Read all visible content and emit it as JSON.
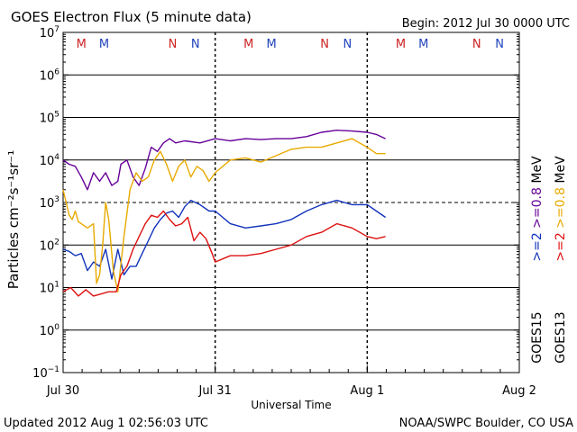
{
  "chart_data": {
    "type": "line",
    "title": "GOES Electron Flux (5 minute data)",
    "begin_label": "Begin: 2012 Jul 30 0000 UTC",
    "xlabel": "Universal Time",
    "ylabel": "Particles cm⁻²s⁻¹sr⁻¹",
    "x_unit": "days since 2012-07-30 00:00 UTC",
    "xlim": [
      0,
      3
    ],
    "ylim_log10": [
      -1,
      7
    ],
    "y_scale": "log",
    "grid": "horizontal decades, dashed at 10^3",
    "x_ticks": [
      {
        "value": 0,
        "label": "Jul 30"
      },
      {
        "value": 1,
        "label": "Jul 31"
      },
      {
        "value": 2,
        "label": "Aug 1"
      },
      {
        "value": 3,
        "label": "Aug 2"
      }
    ],
    "y_ticks": [
      {
        "exp": 7,
        "label": "10",
        "sup": "7"
      },
      {
        "exp": 6,
        "label": "10",
        "sup": "6"
      },
      {
        "exp": 5,
        "label": "10",
        "sup": "5"
      },
      {
        "exp": 4,
        "label": "10",
        "sup": "4"
      },
      {
        "exp": 3,
        "label": "10",
        "sup": "3"
      },
      {
        "exp": 2,
        "label": "10",
        "sup": "2"
      },
      {
        "exp": 1,
        "label": "10",
        "sup": "1"
      },
      {
        "exp": 0,
        "label": "10",
        "sup": "0"
      },
      {
        "exp": -1,
        "label": "10",
        "sup": "−1"
      }
    ],
    "satellite_markers": [
      {
        "x": 0.12,
        "label": "M",
        "color": "#cc2222"
      },
      {
        "x": 0.27,
        "label": "M",
        "color": "#2244bb"
      },
      {
        "x": 0.72,
        "label": "N",
        "color": "#cc2222"
      },
      {
        "x": 0.87,
        "label": "N",
        "color": "#2244bb"
      },
      {
        "x": 1.22,
        "label": "M",
        "color": "#cc2222"
      },
      {
        "x": 1.37,
        "label": "M",
        "color": "#2244bb"
      },
      {
        "x": 1.72,
        "label": "N",
        "color": "#cc2222"
      },
      {
        "x": 1.87,
        "label": "N",
        "color": "#2244bb"
      },
      {
        "x": 2.22,
        "label": "M",
        "color": "#cc2222"
      },
      {
        "x": 2.37,
        "label": "M",
        "color": "#2244bb"
      },
      {
        "x": 2.72,
        "label": "N",
        "color": "#cc2222"
      },
      {
        "x": 2.87,
        "label": "N",
        "color": "#2244bb"
      }
    ],
    "series": [
      {
        "name": "GOES15 >=0.8 MeV",
        "color": "#660099",
        "x": [
          0,
          0.04,
          0.08,
          0.12,
          0.16,
          0.2,
          0.24,
          0.28,
          0.32,
          0.36,
          0.38,
          0.42,
          0.46,
          0.5,
          0.54,
          0.58,
          0.62,
          0.66,
          0.7,
          0.74,
          0.8,
          0.9,
          1.0,
          1.1,
          1.2,
          1.3,
          1.4,
          1.5,
          1.6,
          1.7,
          1.8,
          1.9,
          2.0,
          2.06,
          2.12
        ],
        "log_values": [
          4.0,
          3.9,
          3.85,
          3.6,
          3.3,
          3.7,
          3.5,
          3.7,
          3.4,
          3.5,
          3.9,
          4.0,
          3.6,
          3.4,
          3.8,
          4.3,
          4.2,
          4.4,
          4.5,
          4.4,
          4.45,
          4.4,
          4.5,
          4.45,
          4.5,
          4.48,
          4.5,
          4.5,
          4.55,
          4.65,
          4.7,
          4.68,
          4.65,
          4.6,
          4.5
        ]
      },
      {
        "name": "GOES15 >=2 MeV",
        "color": "#1133bb",
        "x": [
          0,
          0.04,
          0.08,
          0.12,
          0.16,
          0.2,
          0.24,
          0.28,
          0.32,
          0.36,
          0.4,
          0.44,
          0.48,
          0.52,
          0.56,
          0.6,
          0.64,
          0.68,
          0.72,
          0.76,
          0.8,
          0.84,
          0.9,
          0.96,
          1.0,
          1.1,
          1.2,
          1.3,
          1.4,
          1.5,
          1.6,
          1.7,
          1.8,
          1.9,
          2.0,
          2.06,
          2.12
        ],
        "log_values": [
          1.9,
          1.85,
          1.75,
          1.8,
          1.4,
          1.6,
          1.5,
          1.9,
          1.2,
          1.9,
          1.3,
          1.5,
          1.5,
          1.8,
          2.1,
          2.4,
          2.6,
          2.75,
          2.8,
          2.65,
          2.9,
          3.05,
          2.95,
          2.8,
          2.8,
          2.5,
          2.4,
          2.45,
          2.5,
          2.6,
          2.8,
          2.95,
          3.05,
          2.95,
          2.95,
          2.8,
          2.65
        ]
      },
      {
        "name": "GOES13 >=0.8 MeV",
        "color": "#e8aa00",
        "x": [
          0,
          0.02,
          0.04,
          0.06,
          0.08,
          0.1,
          0.12,
          0.16,
          0.2,
          0.22,
          0.24,
          0.26,
          0.28,
          0.3,
          0.33,
          0.36,
          0.4,
          0.44,
          0.48,
          0.52,
          0.56,
          0.6,
          0.64,
          0.68,
          0.72,
          0.76,
          0.8,
          0.84,
          0.88,
          0.92,
          0.96,
          1.0,
          1.1,
          1.2,
          1.3,
          1.4,
          1.5,
          1.6,
          1.7,
          1.8,
          1.9,
          2.0,
          2.06,
          2.12
        ],
        "log_values": [
          3.3,
          3.0,
          2.7,
          2.6,
          2.8,
          2.55,
          2.5,
          2.4,
          2.5,
          1.1,
          1.3,
          2.0,
          3.0,
          2.6,
          1.4,
          0.9,
          2.2,
          3.3,
          3.7,
          3.5,
          3.6,
          4.0,
          4.2,
          3.9,
          3.5,
          3.85,
          4.0,
          3.6,
          3.85,
          3.75,
          3.5,
          3.7,
          4.0,
          4.05,
          3.95,
          4.1,
          4.25,
          4.3,
          4.3,
          4.4,
          4.5,
          4.3,
          4.15,
          4.15
        ]
      },
      {
        "name": "GOES13 >=2 MeV",
        "color": "#dd1111",
        "x": [
          0,
          0.05,
          0.1,
          0.15,
          0.2,
          0.25,
          0.3,
          0.35,
          0.38,
          0.42,
          0.46,
          0.5,
          0.54,
          0.58,
          0.62,
          0.66,
          0.7,
          0.74,
          0.78,
          0.82,
          0.86,
          0.9,
          0.94,
          0.98,
          1.0,
          1.1,
          1.2,
          1.3,
          1.4,
          1.5,
          1.6,
          1.7,
          1.8,
          1.9,
          2.0,
          2.06,
          2.12
        ],
        "log_values": [
          0.9,
          1.0,
          0.8,
          0.95,
          0.8,
          0.85,
          0.9,
          0.9,
          1.3,
          1.5,
          1.9,
          2.2,
          2.5,
          2.7,
          2.65,
          2.8,
          2.6,
          2.45,
          2.5,
          2.65,
          2.1,
          2.3,
          2.15,
          1.8,
          1.6,
          1.75,
          1.75,
          1.8,
          1.9,
          2.0,
          2.2,
          2.3,
          2.5,
          2.4,
          2.2,
          2.15,
          2.2
        ]
      }
    ],
    "right_labels": {
      "goes15_low": ">=0.8",
      "goes15_high": ">=2",
      "goes13_low": ">=0.8",
      "goes13_high": ">=2",
      "unit": "MeV",
      "goes15": "GOES15",
      "goes13": "GOES13",
      "color_goes15_low": "#660099",
      "color_goes15_high": "#1133bb",
      "color_goes13_low": "#e8aa00",
      "color_goes13_high": "#dd1111"
    }
  },
  "footer": {
    "updated": "Updated 2012 Aug  1 02:56:03 UTC",
    "credit": "NOAA/SWPC Boulder, CO USA"
  }
}
